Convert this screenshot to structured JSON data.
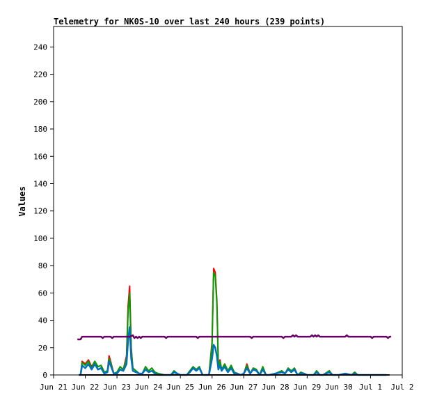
{
  "chart_data": {
    "type": "line",
    "title": "Telemetry for NK0S-10 over last 240 hours (239 points)",
    "ylabel": "Values",
    "xlabel": "",
    "ylim": [
      0,
      255
    ],
    "xlim": [
      "Jun 21",
      "Jul 2"
    ],
    "y_ticks": [
      0,
      20,
      40,
      60,
      80,
      100,
      120,
      140,
      160,
      180,
      200,
      220,
      240
    ],
    "x_ticks": [
      "Jun 21",
      "Jun 22",
      "Jun 23",
      "Jun 24",
      "Jun 25",
      "Jun 26",
      "Jun 27",
      "Jun 28",
      "Jun 29",
      "Jun 30",
      "Jul 1",
      "Jul 2"
    ],
    "grid": false,
    "series": [
      {
        "color": "#ff0000",
        "points": [
          [
            0.8,
            0
          ],
          [
            0.85,
            0
          ],
          [
            0.9,
            10
          ],
          [
            1.0,
            8
          ],
          [
            1.1,
            11
          ],
          [
            1.2,
            6
          ],
          [
            1.3,
            10
          ],
          [
            1.4,
            6
          ],
          [
            1.5,
            7
          ],
          [
            1.6,
            2
          ],
          [
            1.7,
            3
          ],
          [
            1.75,
            14
          ],
          [
            1.8,
            10
          ],
          [
            1.9,
            1
          ],
          [
            2.0,
            2
          ],
          [
            2.1,
            6
          ],
          [
            2.2,
            4
          ],
          [
            2.3,
            14
          ],
          [
            2.35,
            50
          ],
          [
            2.4,
            65
          ],
          [
            2.45,
            20
          ],
          [
            2.5,
            5
          ],
          [
            2.6,
            3
          ],
          [
            2.7,
            1
          ],
          [
            2.8,
            1
          ],
          [
            2.9,
            6
          ],
          [
            3.0,
            3
          ],
          [
            3.1,
            5
          ],
          [
            3.2,
            2
          ],
          [
            3.3,
            1
          ],
          [
            3.5,
            0
          ],
          [
            3.7,
            0
          ],
          [
            3.8,
            3
          ],
          [
            3.9,
            1
          ],
          [
            4.0,
            0
          ],
          [
            4.2,
            0
          ],
          [
            4.3,
            3
          ],
          [
            4.4,
            6
          ],
          [
            4.5,
            4
          ],
          [
            4.6,
            6
          ],
          [
            4.7,
            0
          ],
          [
            4.8,
            0
          ],
          [
            4.9,
            0
          ],
          [
            5.0,
            24
          ],
          [
            5.05,
            78
          ],
          [
            5.1,
            75
          ],
          [
            5.15,
            55
          ],
          [
            5.2,
            6
          ],
          [
            5.25,
            11
          ],
          [
            5.3,
            4
          ],
          [
            5.4,
            8
          ],
          [
            5.5,
            3
          ],
          [
            5.6,
            7
          ],
          [
            5.7,
            2
          ],
          [
            5.8,
            1
          ],
          [
            5.9,
            0
          ],
          [
            6.0,
            1
          ],
          [
            6.1,
            8
          ],
          [
            6.2,
            1
          ],
          [
            6.3,
            5
          ],
          [
            6.4,
            4
          ],
          [
            6.5,
            0
          ],
          [
            6.6,
            6
          ],
          [
            6.7,
            0
          ],
          [
            6.8,
            0
          ],
          [
            7.0,
            1
          ],
          [
            7.2,
            3
          ],
          [
            7.3,
            1
          ],
          [
            7.4,
            5
          ],
          [
            7.5,
            3
          ],
          [
            7.6,
            5
          ],
          [
            7.7,
            0
          ],
          [
            7.8,
            2
          ],
          [
            7.9,
            1
          ],
          [
            8.0,
            0
          ],
          [
            8.2,
            0
          ],
          [
            8.3,
            3
          ],
          [
            8.4,
            0
          ],
          [
            8.5,
            0
          ],
          [
            8.7,
            3
          ],
          [
            8.8,
            0
          ],
          [
            9.0,
            0
          ],
          [
            9.2,
            1
          ],
          [
            9.4,
            0
          ],
          [
            9.5,
            2
          ],
          [
            9.6,
            0
          ],
          [
            9.8,
            0
          ],
          [
            10.0,
            0
          ],
          [
            10.5,
            0
          ]
        ]
      },
      {
        "color": "#00a000",
        "points": [
          [
            0.8,
            0
          ],
          [
            0.85,
            0
          ],
          [
            0.9,
            9
          ],
          [
            1.0,
            7
          ],
          [
            1.1,
            10
          ],
          [
            1.2,
            5
          ],
          [
            1.3,
            10
          ],
          [
            1.4,
            6
          ],
          [
            1.5,
            7
          ],
          [
            1.6,
            2
          ],
          [
            1.7,
            3
          ],
          [
            1.75,
            12
          ],
          [
            1.8,
            9
          ],
          [
            1.9,
            1
          ],
          [
            2.0,
            2
          ],
          [
            2.1,
            6
          ],
          [
            2.2,
            4
          ],
          [
            2.3,
            12
          ],
          [
            2.35,
            45
          ],
          [
            2.4,
            60
          ],
          [
            2.45,
            18
          ],
          [
            2.5,
            5
          ],
          [
            2.6,
            3
          ],
          [
            2.7,
            1
          ],
          [
            2.8,
            1
          ],
          [
            2.9,
            6
          ],
          [
            3.0,
            3
          ],
          [
            3.1,
            5
          ],
          [
            3.2,
            2
          ],
          [
            3.3,
            1
          ],
          [
            3.5,
            0
          ],
          [
            3.7,
            0
          ],
          [
            3.8,
            3
          ],
          [
            3.9,
            1
          ],
          [
            4.0,
            0
          ],
          [
            4.2,
            0
          ],
          [
            4.3,
            3
          ],
          [
            4.4,
            6
          ],
          [
            4.5,
            4
          ],
          [
            4.6,
            6
          ],
          [
            4.7,
            0
          ],
          [
            4.8,
            0
          ],
          [
            4.9,
            0
          ],
          [
            5.0,
            22
          ],
          [
            5.05,
            75
          ],
          [
            5.1,
            72
          ],
          [
            5.15,
            52
          ],
          [
            5.2,
            6
          ],
          [
            5.25,
            10
          ],
          [
            5.3,
            4
          ],
          [
            5.4,
            8
          ],
          [
            5.5,
            3
          ],
          [
            5.6,
            7
          ],
          [
            5.7,
            2
          ],
          [
            5.8,
            1
          ],
          [
            5.9,
            0
          ],
          [
            6.0,
            1
          ],
          [
            6.1,
            7
          ],
          [
            6.2,
            1
          ],
          [
            6.3,
            5
          ],
          [
            6.4,
            4
          ],
          [
            6.5,
            0
          ],
          [
            6.6,
            6
          ],
          [
            6.7,
            0
          ],
          [
            6.8,
            0
          ],
          [
            7.0,
            1
          ],
          [
            7.2,
            3
          ],
          [
            7.3,
            1
          ],
          [
            7.4,
            5
          ],
          [
            7.5,
            3
          ],
          [
            7.6,
            5
          ],
          [
            7.7,
            0
          ],
          [
            7.8,
            2
          ],
          [
            7.9,
            1
          ],
          [
            8.0,
            0
          ],
          [
            8.2,
            0
          ],
          [
            8.3,
            3
          ],
          [
            8.4,
            0
          ],
          [
            8.5,
            0
          ],
          [
            8.7,
            3
          ],
          [
            8.8,
            0
          ],
          [
            9.0,
            0
          ],
          [
            9.2,
            1
          ],
          [
            9.4,
            0
          ],
          [
            9.5,
            2
          ],
          [
            9.6,
            0
          ],
          [
            9.8,
            0
          ],
          [
            10.0,
            0
          ],
          [
            10.5,
            0
          ]
        ]
      },
      {
        "color": "#0070c0",
        "points": [
          [
            0.8,
            0
          ],
          [
            0.85,
            0
          ],
          [
            0.9,
            7
          ],
          [
            1.0,
            5
          ],
          [
            1.1,
            8
          ],
          [
            1.2,
            4
          ],
          [
            1.3,
            8
          ],
          [
            1.4,
            4
          ],
          [
            1.5,
            5
          ],
          [
            1.6,
            1
          ],
          [
            1.7,
            2
          ],
          [
            1.75,
            10
          ],
          [
            1.8,
            7
          ],
          [
            1.9,
            1
          ],
          [
            2.0,
            1
          ],
          [
            2.1,
            4
          ],
          [
            2.2,
            3
          ],
          [
            2.3,
            8
          ],
          [
            2.35,
            25
          ],
          [
            2.4,
            35
          ],
          [
            2.45,
            12
          ],
          [
            2.5,
            3
          ],
          [
            2.6,
            2
          ],
          [
            2.7,
            1
          ],
          [
            2.8,
            1
          ],
          [
            2.9,
            4
          ],
          [
            3.0,
            2
          ],
          [
            3.1,
            3
          ],
          [
            3.2,
            1
          ],
          [
            3.3,
            0
          ],
          [
            3.5,
            0
          ],
          [
            3.7,
            0
          ],
          [
            3.8,
            2
          ],
          [
            3.9,
            1
          ],
          [
            4.0,
            0
          ],
          [
            4.2,
            0
          ],
          [
            4.3,
            2
          ],
          [
            4.4,
            5
          ],
          [
            4.5,
            3
          ],
          [
            4.6,
            5
          ],
          [
            4.7,
            0
          ],
          [
            4.8,
            0
          ],
          [
            4.9,
            0
          ],
          [
            5.0,
            12
          ],
          [
            5.05,
            22
          ],
          [
            5.1,
            20
          ],
          [
            5.15,
            14
          ],
          [
            5.2,
            4
          ],
          [
            5.25,
            7
          ],
          [
            5.3,
            3
          ],
          [
            5.4,
            6
          ],
          [
            5.5,
            2
          ],
          [
            5.6,
            5
          ],
          [
            5.7,
            1
          ],
          [
            5.8,
            1
          ],
          [
            5.9,
            0
          ],
          [
            6.0,
            1
          ],
          [
            6.1,
            5
          ],
          [
            6.2,
            1
          ],
          [
            6.3,
            4
          ],
          [
            6.4,
            3
          ],
          [
            6.5,
            0
          ],
          [
            6.6,
            4
          ],
          [
            6.7,
            0
          ],
          [
            6.8,
            0
          ],
          [
            7.0,
            1
          ],
          [
            7.2,
            2
          ],
          [
            7.3,
            1
          ],
          [
            7.4,
            4
          ],
          [
            7.5,
            2
          ],
          [
            7.6,
            4
          ],
          [
            7.7,
            0
          ],
          [
            7.8,
            1
          ],
          [
            7.9,
            1
          ],
          [
            8.0,
            0
          ],
          [
            8.2,
            0
          ],
          [
            8.3,
            2
          ],
          [
            8.4,
            0
          ],
          [
            8.5,
            0
          ],
          [
            8.7,
            2
          ],
          [
            8.8,
            0
          ],
          [
            9.0,
            0
          ],
          [
            9.2,
            1
          ],
          [
            9.4,
            0
          ],
          [
            9.5,
            1
          ],
          [
            9.6,
            0
          ],
          [
            9.8,
            0
          ],
          [
            10.0,
            0
          ],
          [
            10.5,
            0
          ]
        ]
      },
      {
        "color": "#000000",
        "points": [
          [
            0.8,
            0
          ],
          [
            10.6,
            0
          ]
        ]
      },
      {
        "color": "#660066",
        "points": [
          [
            0.75,
            26
          ],
          [
            0.85,
            26
          ],
          [
            0.9,
            28
          ],
          [
            1.5,
            28
          ],
          [
            1.55,
            27
          ],
          [
            1.6,
            28
          ],
          [
            1.8,
            28
          ],
          [
            1.85,
            27
          ],
          [
            1.9,
            28
          ],
          [
            2.4,
            28
          ],
          [
            2.5,
            29
          ],
          [
            2.55,
            27
          ],
          [
            2.6,
            28
          ],
          [
            2.65,
            27
          ],
          [
            2.7,
            28
          ],
          [
            2.75,
            27
          ],
          [
            2.8,
            28
          ],
          [
            3.5,
            28
          ],
          [
            3.55,
            27
          ],
          [
            3.6,
            28
          ],
          [
            4.5,
            28
          ],
          [
            4.55,
            27
          ],
          [
            4.6,
            28
          ],
          [
            6.2,
            28
          ],
          [
            6.25,
            27
          ],
          [
            6.3,
            28
          ],
          [
            7.2,
            28
          ],
          [
            7.25,
            27
          ],
          [
            7.3,
            28
          ],
          [
            7.5,
            28
          ],
          [
            7.55,
            29
          ],
          [
            7.6,
            28
          ],
          [
            7.65,
            29
          ],
          [
            7.7,
            28
          ],
          [
            8.1,
            28
          ],
          [
            8.15,
            29
          ],
          [
            8.2,
            28
          ],
          [
            8.25,
            29
          ],
          [
            8.3,
            28
          ],
          [
            8.35,
            29
          ],
          [
            8.4,
            28
          ],
          [
            9.2,
            28
          ],
          [
            9.25,
            29
          ],
          [
            9.3,
            28
          ],
          [
            10.0,
            28
          ],
          [
            10.05,
            27
          ],
          [
            10.1,
            28
          ],
          [
            10.5,
            28
          ],
          [
            10.55,
            27
          ],
          [
            10.6,
            28
          ],
          [
            10.65,
            28
          ]
        ]
      }
    ]
  }
}
